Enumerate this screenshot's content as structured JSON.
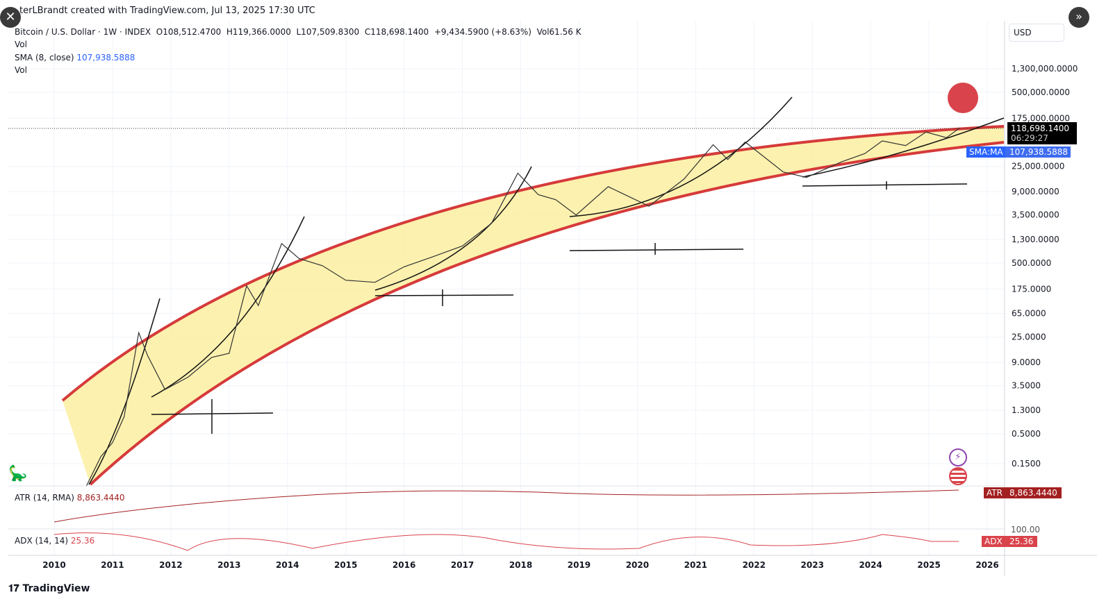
{
  "header": {
    "credit": "terLBrandt created with TradingView.com, Jul 13, 2025 17:30 UTC",
    "symbol": "Bitcoin / U.S. Dollar · 1W · INDEX",
    "open": "O108,512.4700",
    "high": "H119,366.0000",
    "low": "L107,509.8300",
    "close": "C118,698.1400",
    "change": "+9,434.5900 (+8.63%)",
    "vol": "Vol61.56 K"
  },
  "legend": {
    "vol1": "Vol",
    "sma_label": "SMA (8, close)",
    "sma_value": "107,938.5888",
    "vol2": "Vol"
  },
  "currency": "USD",
  "price_label": {
    "value": "118,698.1400",
    "countdown": "06:29:27"
  },
  "sma_label": {
    "name": "SMA:MA",
    "value": "107,938.5888"
  },
  "atr": {
    "label": "ATR (14, RMA)",
    "value": "8,863.4440",
    "tag": "ATR"
  },
  "adx": {
    "label": "ADX (14, 14)",
    "value": "25.36",
    "tag": "ADX",
    "axis": "100.00"
  },
  "brand": "TradingView",
  "colors": {
    "sma": "#2962ff",
    "atr": "#a32020",
    "adx": "#d9434b",
    "band": "#d63a3a",
    "fill": "#fbeea0"
  },
  "chart_data": {
    "type": "line",
    "title": "Bitcoin / U.S. Dollar · 1W · INDEX",
    "yscale": "log",
    "ylim": [
      0.05,
      3500000
    ],
    "xlim": [
      2009.6,
      2026.3
    ],
    "x_ticks": [
      "2010",
      "2011",
      "2012",
      "2013",
      "2014",
      "2015",
      "2016",
      "2017",
      "2018",
      "2019",
      "2020",
      "2021",
      "2022",
      "2023",
      "2024",
      "2025",
      "2026"
    ],
    "y_ticks": [
      {
        "v": 1300000,
        "l": "1,300,000.0000"
      },
      {
        "v": 500000,
        "l": "500,000.0000"
      },
      {
        "v": 175000,
        "l": "175,000.0000"
      },
      {
        "v": 25000,
        "l": "25,000.0000"
      },
      {
        "v": 9000,
        "l": "9,000.0000"
      },
      {
        "v": 3500,
        "l": "3,500.0000"
      },
      {
        "v": 1300,
        "l": "1,300.0000"
      },
      {
        "v": 500,
        "l": "500.0000"
      },
      {
        "v": 175,
        "l": "175.0000"
      },
      {
        "v": 65,
        "l": "65.0000"
      },
      {
        "v": 25,
        "l": "25.0000"
      },
      {
        "v": 9,
        "l": "9.0000"
      },
      {
        "v": 3.5,
        "l": "3.5000"
      },
      {
        "v": 1.3,
        "l": "1.3000"
      },
      {
        "v": 0.5,
        "l": "0.5000"
      },
      {
        "v": 0.15,
        "l": "0.1500"
      }
    ],
    "series": [
      {
        "name": "BTCUSD",
        "x": [
          2010.55,
          2010.8,
          2011.0,
          2011.2,
          2011.45,
          2011.6,
          2011.9,
          2012.3,
          2012.7,
          2013.0,
          2013.3,
          2013.5,
          2013.9,
          2014.2,
          2014.6,
          2015.0,
          2015.5,
          2016.0,
          2016.5,
          2017.0,
          2017.5,
          2017.95,
          2018.3,
          2018.6,
          2018.95,
          2019.5,
          2020.2,
          2020.8,
          2021.3,
          2021.55,
          2021.85,
          2022.5,
          2022.9,
          2023.5,
          2023.9,
          2024.2,
          2024.6,
          2024.95,
          2025.3,
          2025.53
        ],
        "y": [
          0.06,
          0.2,
          0.35,
          1,
          30,
          12,
          3,
          5,
          11,
          13,
          200,
          90,
          1100,
          600,
          450,
          250,
          230,
          430,
          650,
          1000,
          2500,
          19000,
          8000,
          6500,
          3500,
          11000,
          5000,
          15000,
          60000,
          33000,
          67000,
          20000,
          16000,
          30000,
          42000,
          70000,
          58000,
          100000,
          80000,
          118698
        ]
      }
    ]
  }
}
